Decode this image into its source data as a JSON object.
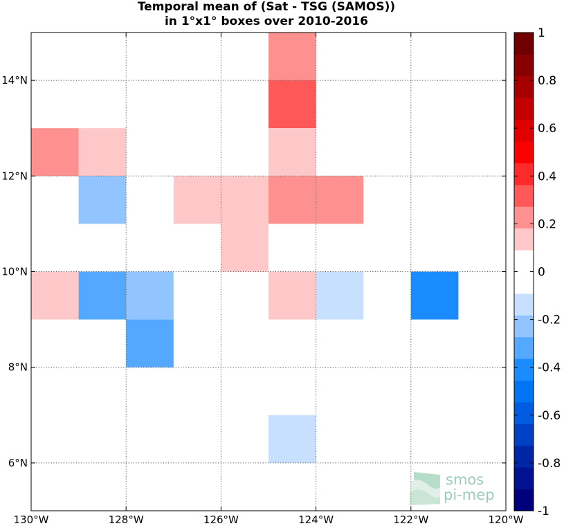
{
  "chart_data": {
    "type": "heatmap",
    "title": [
      "Temporal mean of (Sat - TSG (SAMOS))",
      "in 1°x1° boxes over 2010-2016"
    ],
    "x_label": "",
    "y_label": "",
    "xlim": [
      -130,
      -120
    ],
    "ylim": [
      5,
      15
    ],
    "x_ticks": [
      -130,
      -128,
      -126,
      -124,
      -122,
      -120
    ],
    "x_tick_labels": [
      "130°W",
      "128°W",
      "126°W",
      "124°W",
      "122°W",
      "120°W"
    ],
    "y_ticks": [
      6,
      8,
      10,
      12,
      14
    ],
    "y_tick_labels": [
      "6°N",
      "8°N",
      "10°N",
      "12°N",
      "14°N"
    ],
    "grid": true,
    "grid_style": "dotted",
    "cells": [
      {
        "lon": -124.5,
        "lat": 14.5,
        "value": 0.25
      },
      {
        "lon": -124.5,
        "lat": 13.5,
        "value": 0.35
      },
      {
        "lon": -129.5,
        "lat": 12.5,
        "value": 0.25
      },
      {
        "lon": -128.5,
        "lat": 12.5,
        "value": 0.15
      },
      {
        "lon": -124.5,
        "lat": 12.5,
        "value": 0.15
      },
      {
        "lon": -128.5,
        "lat": 11.5,
        "value": -0.25
      },
      {
        "lon": -126.5,
        "lat": 11.5,
        "value": 0.15
      },
      {
        "lon": -125.5,
        "lat": 11.5,
        "value": 0.15
      },
      {
        "lon": -124.5,
        "lat": 11.5,
        "value": 0.25
      },
      {
        "lon": -123.5,
        "lat": 11.5,
        "value": 0.25
      },
      {
        "lon": -125.5,
        "lat": 10.5,
        "value": 0.15
      },
      {
        "lon": -129.5,
        "lat": 9.5,
        "value": 0.15
      },
      {
        "lon": -128.5,
        "lat": 9.5,
        "value": -0.35
      },
      {
        "lon": -127.5,
        "lat": 9.5,
        "value": -0.25
      },
      {
        "lon": -124.5,
        "lat": 9.5,
        "value": 0.15
      },
      {
        "lon": -123.5,
        "lat": 9.5,
        "value": -0.15
      },
      {
        "lon": -121.5,
        "lat": 9.5,
        "value": -0.45
      },
      {
        "lon": -127.5,
        "lat": 8.5,
        "value": -0.35
      },
      {
        "lon": -124.5,
        "lat": 6.5,
        "value": -0.15
      }
    ],
    "colorbar": {
      "min": -1,
      "max": 1,
      "step": 0.1,
      "tick_values": [
        -1,
        -0.8,
        -0.6,
        -0.4,
        -0.2,
        0,
        0.2,
        0.4,
        0.6,
        0.8,
        1
      ],
      "tick_labels": [
        "-1",
        "-0.8",
        "-0.6",
        "-0.4",
        "-0.2",
        "0",
        "0.2",
        "0.4",
        "0.6",
        "0.8",
        "1"
      ],
      "colors": [
        "#00007d",
        "#00128f",
        "#0026a6",
        "#0040c4",
        "#005ce0",
        "#0074f2",
        "#1a8cff",
        "#54a8ff",
        "#92c4ff",
        "#c8e0ff",
        "#ffffff",
        "#ffffff",
        "#ffc8c8",
        "#ff9090",
        "#ff5858",
        "#ff2a2a",
        "#ff0000",
        "#e00000",
        "#c40000",
        "#a60000",
        "#8a0000",
        "#700000"
      ],
      "palette_note": ""
    },
    "watermark": {
      "line1": "smos",
      "line2": "pi-mep"
    }
  },
  "style": {
    "map_background": "#ffffff",
    "grid_color": "#555555",
    "watermark_color": "#4aa37a"
  }
}
